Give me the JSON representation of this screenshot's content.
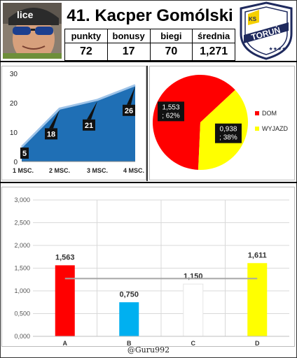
{
  "header": {
    "title": "41. Kacper Gomólski",
    "stat_labels": [
      "punkty",
      "bonusy",
      "biegi",
      "średnia"
    ],
    "stat_values": [
      "72",
      "17",
      "70",
      "1,271"
    ],
    "logo_text": "TORUŃ",
    "logo_small": "KS",
    "photo_cap_text": "lice"
  },
  "footer": {
    "credit": "@Guru992"
  },
  "colors": {
    "area_fill": "#1f6fb5",
    "area_top": "#9ec3e8",
    "pie_dom": "#ff0000",
    "pie_wyjazd": "#ffff00",
    "bar_a": "#ff0000",
    "bar_b": "#00b0f0",
    "bar_c": "#ffffff",
    "bar_d": "#ffff00",
    "logo_navy": "#1f2a5e",
    "logo_yellow": "#f5d000"
  },
  "chart_data": [
    {
      "type": "area",
      "categories": [
        "1 MSC.",
        "2 MSC.",
        "3 MSC.",
        "4 MSC."
      ],
      "values": [
        5,
        18,
        21,
        26
      ],
      "ylim": [
        0,
        30
      ],
      "yticks": [
        "0",
        "10",
        "20",
        "30"
      ],
      "grid": false,
      "legend": "none"
    },
    {
      "type": "pie",
      "slices": [
        {
          "name": "DOM",
          "value": 1.553,
          "label": "1,553\n; 62%"
        },
        {
          "name": "WYJAZD",
          "value": 0.938,
          "label": "0,938\n; 38%"
        }
      ],
      "legend": "right"
    },
    {
      "type": "bar",
      "categories": [
        "A",
        "B",
        "C",
        "D"
      ],
      "values": [
        1.563,
        0.75,
        1.15,
        1.611
      ],
      "labels": [
        "1,563",
        "0,750",
        "1,150",
        "1,611"
      ],
      "reference_line": 1.271,
      "ylim": [
        0,
        3
      ],
      "yticks": [
        "0,000",
        "0,500",
        "1,000",
        "1,500",
        "2,000",
        "2,500",
        "3,000"
      ],
      "grid": true,
      "legend": "none"
    }
  ]
}
